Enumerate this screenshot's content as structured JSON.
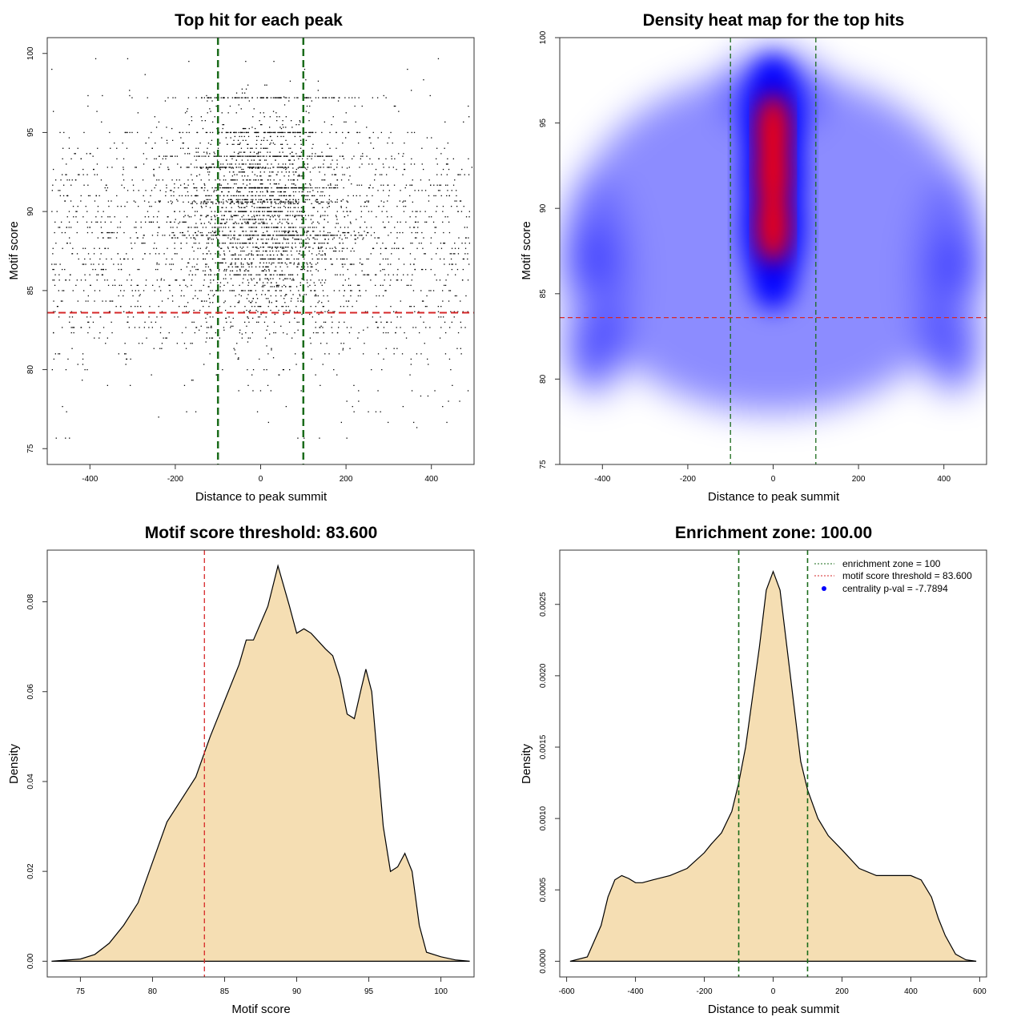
{
  "colors": {
    "threshold": "#d62728",
    "zone": "#1a6b1a",
    "fill": "#f5deb3",
    "heat_low": "#ffffff",
    "heat_mid": "#0000ff",
    "heat_high": "#ff0000"
  },
  "chart_data": [
    {
      "id": "scatter",
      "type": "scatter",
      "title": "Top hit for each peak",
      "xlabel": "Distance to peak summit",
      "ylabel": "Motif score",
      "xlim": [
        -500,
        500
      ],
      "ylim": [
        74,
        101
      ],
      "xticks": [
        -400,
        -200,
        0,
        200,
        400
      ],
      "yticks": [
        75,
        80,
        85,
        90,
        95,
        100
      ],
      "hline": 83.6,
      "vlines": [
        -100,
        100
      ]
    },
    {
      "id": "heatmap",
      "type": "heatmap",
      "title": "Density heat map for the top hits",
      "xlabel": "Distance to peak summit",
      "ylabel": "Motif score",
      "xlim": [
        -500,
        500
      ],
      "ylim": [
        75,
        100
      ],
      "xticks": [
        -400,
        -200,
        0,
        200,
        400
      ],
      "yticks": [
        75,
        80,
        85,
        90,
        95,
        100
      ],
      "hline": 83.6,
      "vlines": [
        -100,
        100
      ],
      "hot_spots": [
        {
          "x": 0,
          "y": 94.5,
          "level": "high"
        },
        {
          "x": 0,
          "y": 92,
          "level": "high"
        },
        {
          "x": 0,
          "y": 89,
          "level": "high"
        },
        {
          "x": 0,
          "y": 97,
          "level": "mid"
        },
        {
          "x": 0,
          "y": 86,
          "level": "mid"
        },
        {
          "x": -420,
          "y": 81.5,
          "level": "low"
        },
        {
          "x": -430,
          "y": 87,
          "level": "low"
        },
        {
          "x": 430,
          "y": 86.5,
          "level": "low"
        },
        {
          "x": 420,
          "y": 81.5,
          "level": "low"
        }
      ]
    },
    {
      "id": "score_density",
      "type": "area",
      "title": "Motif score threshold: 83.600",
      "xlabel": "Motif score",
      "ylabel": "Density",
      "xlim": [
        72.7,
        102.3
      ],
      "ylim": [
        -0.0035,
        0.0915
      ],
      "xticks": [
        75,
        80,
        85,
        90,
        95,
        100
      ],
      "yticks": [
        0.0,
        0.02,
        0.04,
        0.06,
        0.08
      ],
      "ytick_labels": [
        "0.00",
        "0.02",
        "0.04",
        "0.06",
        "0.08"
      ],
      "vline": 83.6,
      "x": [
        73,
        75,
        76,
        77,
        78,
        79,
        80,
        81,
        82,
        83,
        84,
        85,
        86,
        86.5,
        87,
        88,
        88.7,
        89.5,
        90,
        90.5,
        91,
        92,
        92.5,
        93,
        93.5,
        94,
        94.5,
        94.8,
        95.2,
        95.6,
        96,
        96.5,
        97,
        97.5,
        98,
        98.5,
        99,
        100,
        101,
        102
      ],
      "y": [
        0.0,
        0.0005,
        0.0015,
        0.004,
        0.008,
        0.013,
        0.022,
        0.031,
        0.036,
        0.041,
        0.05,
        0.058,
        0.066,
        0.0715,
        0.0715,
        0.079,
        0.088,
        0.079,
        0.073,
        0.074,
        0.073,
        0.0695,
        0.068,
        0.063,
        0.055,
        0.054,
        0.061,
        0.065,
        0.06,
        0.045,
        0.03,
        0.02,
        0.021,
        0.024,
        0.02,
        0.008,
        0.002,
        0.001,
        0.0003,
        0.0
      ]
    },
    {
      "id": "distance_density",
      "type": "area",
      "title": "Enrichment zone: 100.00",
      "xlabel": "Distance to peak summit",
      "ylabel": "Density",
      "xlim": [
        -620,
        620
      ],
      "ylim": [
        -0.00011,
        0.00288
      ],
      "xticks": [
        -600,
        -400,
        -200,
        0,
        200,
        400,
        600
      ],
      "yticks": [
        0.0,
        0.0005,
        0.001,
        0.0015,
        0.002,
        0.0025
      ],
      "ytick_labels": [
        "0.0000",
        "0.0005",
        "0.0010",
        "0.0015",
        "0.0020",
        "0.0025"
      ],
      "vlines": [
        -100,
        100
      ],
      "x": [
        -590,
        -540,
        -500,
        -480,
        -460,
        -440,
        -420,
        -400,
        -380,
        -350,
        -300,
        -250,
        -200,
        -180,
        -150,
        -120,
        -100,
        -80,
        -60,
        -40,
        -20,
        0,
        20,
        40,
        60,
        80,
        100,
        130,
        160,
        200,
        250,
        300,
        350,
        400,
        430,
        460,
        480,
        500,
        530,
        560,
        590
      ],
      "y": [
        0.0,
        3e-05,
        0.00025,
        0.00045,
        0.00057,
        0.0006,
        0.00058,
        0.00055,
        0.00055,
        0.00057,
        0.0006,
        0.00065,
        0.00076,
        0.00082,
        0.0009,
        0.00105,
        0.00125,
        0.0015,
        0.00185,
        0.0022,
        0.0026,
        0.00273,
        0.0026,
        0.0022,
        0.0018,
        0.0014,
        0.0012,
        0.001,
        0.00088,
        0.00078,
        0.00065,
        0.0006,
        0.0006,
        0.0006,
        0.00057,
        0.00045,
        0.0003,
        0.00018,
        5e-05,
        1e-05,
        0.0
      ]
    }
  ],
  "legend": {
    "items": [
      {
        "label": "enrichment zone = 100",
        "symbol": "dotted",
        "color": "#1a6b1a"
      },
      {
        "label": "motif score threshold = 83.600",
        "symbol": "dotted",
        "color": "#d62728"
      },
      {
        "label": "centrality p-val = -7.7894",
        "symbol": "dot",
        "color": "#0000ff"
      }
    ]
  }
}
